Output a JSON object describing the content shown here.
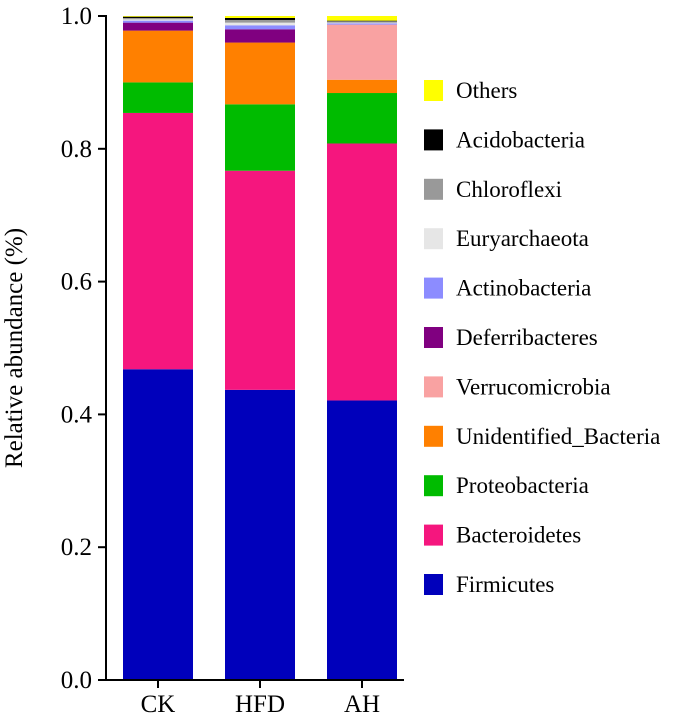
{
  "chart_data": {
    "type": "bar",
    "stacked": true,
    "title": "",
    "xlabel": "",
    "ylabel": "Relative abundance (%)",
    "ylim": [
      0.0,
      1.0
    ],
    "yticks": [
      "0.0",
      "0.2",
      "0.4",
      "0.6",
      "0.8",
      "1.0"
    ],
    "categories": [
      "CK",
      "HFD",
      "AH"
    ],
    "series": [
      {
        "name": "Firmicutes",
        "color": "#0000BB",
        "values": [
          0.468,
          0.437,
          0.421
        ]
      },
      {
        "name": "Bacteroidetes",
        "color": "#F5167E",
        "values": [
          0.386,
          0.33,
          0.387
        ]
      },
      {
        "name": "Proteobacteria",
        "color": "#00BB00",
        "values": [
          0.046,
          0.1,
          0.076
        ]
      },
      {
        "name": "Unidentified_Bacteria",
        "color": "#FF8000",
        "values": [
          0.078,
          0.093,
          0.02
        ]
      },
      {
        "name": "Verrucomicrobia",
        "color": "#F9A2A2",
        "values": [
          0.0,
          0.0,
          0.083
        ]
      },
      {
        "name": "Deferribacteres",
        "color": "#800080",
        "values": [
          0.012,
          0.02,
          0.0
        ]
      },
      {
        "name": "Actinobacteria",
        "color": "#8C8CFF",
        "values": [
          0.003,
          0.006,
          0.002
        ]
      },
      {
        "name": "Euryarchaeota",
        "color": "#E6E6E6",
        "values": [
          0.002,
          0.004,
          0.001
        ]
      },
      {
        "name": "Chloroflexi",
        "color": "#999999",
        "values": [
          0.002,
          0.004,
          0.002
        ]
      },
      {
        "name": "Acidobacteria",
        "color": "#000000",
        "values": [
          0.002,
          0.003,
          0.001
        ]
      },
      {
        "name": "Others",
        "color": "#FFFF00",
        "values": [
          0.001,
          0.003,
          0.007
        ]
      }
    ],
    "legend_order": [
      "Others",
      "Acidobacteria",
      "Chloroflexi",
      "Euryarchaeota",
      "Actinobacteria",
      "Deferribacteres",
      "Verrucomicrobia",
      "Unidentified_Bacteria",
      "Proteobacteria",
      "Bacteroidetes",
      "Firmicutes"
    ],
    "legend_position": "right"
  }
}
